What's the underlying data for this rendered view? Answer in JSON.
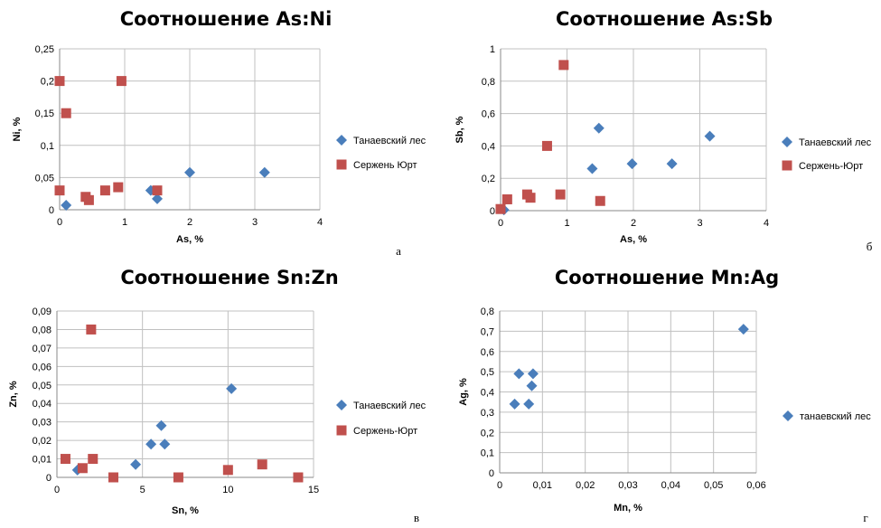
{
  "chart_data": [
    {
      "type": "scatter",
      "title": "Соотношение As:Ni",
      "xlabel": "As, %",
      "ylabel": "Ni, %",
      "xlim": [
        0,
        4
      ],
      "ylim": [
        0,
        0.25
      ],
      "x_ticks": [
        "0",
        "1",
        "2",
        "3",
        "4"
      ],
      "y_ticks": [
        "0",
        "0,05",
        "0,1",
        "0,15",
        "0,2",
        "0,25"
      ],
      "grid": true,
      "legend_position": "right",
      "panel_letter": "а",
      "series": [
        {
          "name": "Танаевский лес",
          "color": "#4a7ebb",
          "marker": "diamond",
          "points": [
            [
              0.1,
              0.007
            ],
            [
              1.4,
              0.03
            ],
            [
              1.5,
              0.017
            ],
            [
              2.0,
              0.058
            ],
            [
              3.15,
              0.058
            ]
          ]
        },
        {
          "name": "Сержень Юрт",
          "color": "#c0504d",
          "marker": "square",
          "points": [
            [
              0.0,
              0.2
            ],
            [
              0.1,
              0.15
            ],
            [
              0.95,
              0.2
            ],
            [
              0.0,
              0.03
            ],
            [
              0.4,
              0.02
            ],
            [
              0.45,
              0.015
            ],
            [
              0.7,
              0.03
            ],
            [
              0.9,
              0.035
            ],
            [
              1.5,
              0.03
            ]
          ]
        }
      ]
    },
    {
      "type": "scatter",
      "title": "Соотношение As:Sb",
      "xlabel": "As, %",
      "ylabel": "Sb, %",
      "xlim": [
        0,
        4
      ],
      "ylim": [
        0,
        1
      ],
      "x_ticks": [
        "0",
        "1",
        "2",
        "3",
        "4"
      ],
      "y_ticks": [
        "0",
        "0,2",
        "0,4",
        "0,6",
        "0,8",
        "1"
      ],
      "grid": true,
      "legend_position": "right",
      "panel_letter": "б",
      "series": [
        {
          "name": "Танаевский лес",
          "color": "#4a7ebb",
          "marker": "diamond",
          "points": [
            [
              0.05,
              0.005
            ],
            [
              1.38,
              0.26
            ],
            [
              1.48,
              0.51
            ],
            [
              1.98,
              0.29
            ],
            [
              2.58,
              0.29
            ],
            [
              3.15,
              0.46
            ]
          ]
        },
        {
          "name": "Сержень-Юрт",
          "color": "#c0504d",
          "marker": "square",
          "points": [
            [
              0.0,
              0.01
            ],
            [
              0.1,
              0.07
            ],
            [
              0.4,
              0.1
            ],
            [
              0.45,
              0.08
            ],
            [
              0.7,
              0.4
            ],
            [
              0.9,
              0.1
            ],
            [
              0.95,
              0.9
            ],
            [
              1.5,
              0.06
            ]
          ]
        }
      ]
    },
    {
      "type": "scatter",
      "title": "Соотношение Sn:Zn",
      "xlabel": "Sn, %",
      "ylabel": "Zn, %",
      "xlim": [
        0,
        15
      ],
      "ylim": [
        0,
        0.09
      ],
      "x_ticks": [
        "0",
        "5",
        "10",
        "15"
      ],
      "y_ticks": [
        "0",
        "0,01",
        "0,02",
        "0,03",
        "0,04",
        "0,05",
        "0,06",
        "0,07",
        "0,08",
        "0,09"
      ],
      "grid": true,
      "legend_position": "right",
      "panel_letter": "в",
      "series": [
        {
          "name": "Танаевский лес",
          "color": "#4a7ebb",
          "marker": "diamond",
          "points": [
            [
              1.2,
              0.004
            ],
            [
              4.6,
              0.007
            ],
            [
              5.5,
              0.018
            ],
            [
              6.1,
              0.028
            ],
            [
              6.3,
              0.018
            ],
            [
              10.2,
              0.048
            ]
          ]
        },
        {
          "name": "Сержень-Юрт",
          "color": "#c0504d",
          "marker": "square",
          "points": [
            [
              0.5,
              0.01
            ],
            [
              1.5,
              0.005
            ],
            [
              2.0,
              0.08
            ],
            [
              2.1,
              0.01
            ],
            [
              3.3,
              0.0
            ],
            [
              7.1,
              0.0
            ],
            [
              10.0,
              0.004
            ],
            [
              12.0,
              0.007
            ],
            [
              14.1,
              0.0
            ]
          ]
        }
      ]
    },
    {
      "type": "scatter",
      "title": "Соотношение Mn:Ag",
      "xlabel": "Mn, %",
      "ylabel": "Ag, %",
      "xlim": [
        0,
        0.06
      ],
      "ylim": [
        0,
        0.8
      ],
      "x_ticks": [
        "0",
        "0,01",
        "0,02",
        "0,03",
        "0,04",
        "0,05",
        "0,06"
      ],
      "y_ticks": [
        "0",
        "0,1",
        "0,2",
        "0,3",
        "0,4",
        "0,5",
        "0,6",
        "0,7",
        "0,8"
      ],
      "grid": true,
      "legend_position": "right",
      "panel_letter": "г",
      "series": [
        {
          "name": "танаевский лес",
          "color": "#4a7ebb",
          "marker": "diamond",
          "points": [
            [
              0.0035,
              0.34
            ],
            [
              0.0045,
              0.49
            ],
            [
              0.0068,
              0.34
            ],
            [
              0.0075,
              0.43
            ],
            [
              0.0078,
              0.49
            ],
            [
              0.057,
              0.71
            ]
          ]
        }
      ]
    }
  ]
}
